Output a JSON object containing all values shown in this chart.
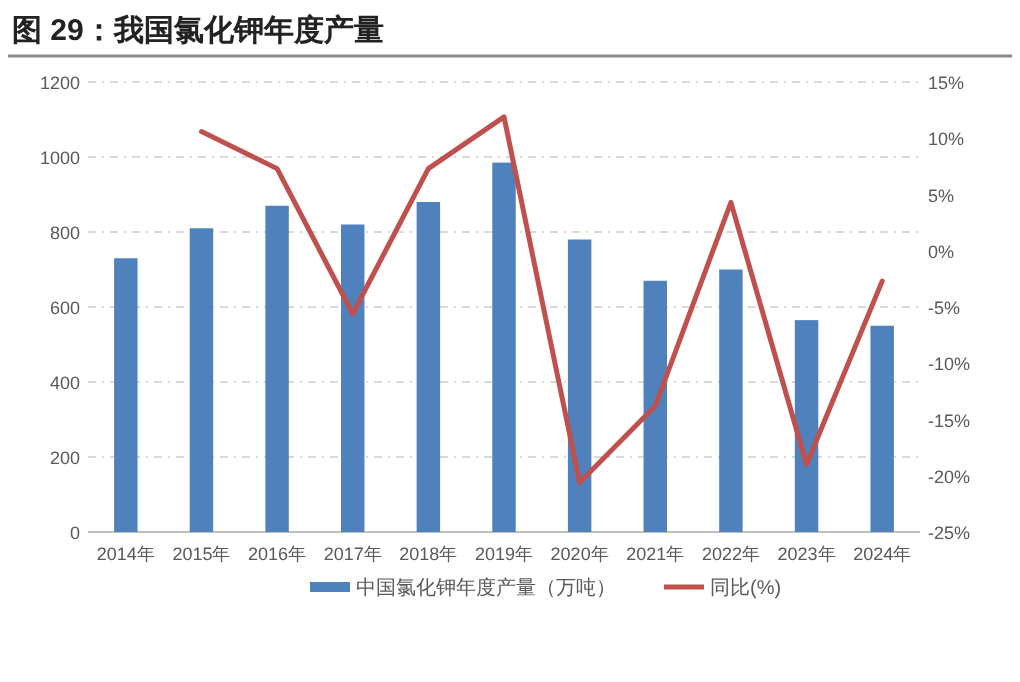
{
  "chart_data": {
    "type": "bar",
    "title": "图 29：我国氯化钾年度产量",
    "categories": [
      "2014年",
      "2015年",
      "2016年",
      "2017年",
      "2018年",
      "2019年",
      "2020年",
      "2021年",
      "2022年",
      "2023年",
      "2024年"
    ],
    "series": [
      {
        "name": "中国氯化钾年度产量（万吨）",
        "color": "#4f81bd",
        "values": [
          730,
          810,
          870,
          820,
          880,
          985,
          780,
          670,
          700,
          565,
          550
        ]
      },
      {
        "name": "同比(%)",
        "type": "line",
        "axis": "y2",
        "color": "#c0504d",
        "values": [
          null,
          10.6,
          7.3,
          -5.6,
          7.3,
          11.9,
          -20.6,
          -13.8,
          4.3,
          -19.0,
          -2.7
        ]
      }
    ],
    "ylim": [
      0,
      1200
    ],
    "yticks": [
      0,
      200,
      400,
      600,
      800,
      1000,
      1200
    ],
    "y2lim": [
      -25,
      15
    ],
    "y2ticks": [
      {
        "value": -25,
        "label": "-25%"
      },
      {
        "value": -20,
        "label": "-20%"
      },
      {
        "value": -15,
        "label": "-15%"
      },
      {
        "value": -10,
        "label": "-10%"
      },
      {
        "value": -5,
        "label": "-5%"
      },
      {
        "value": 0,
        "label": "0%"
      },
      {
        "value": 5,
        "label": "5%"
      },
      {
        "value": 10,
        "label": "10%"
      },
      {
        "value": 15,
        "label": "15%"
      }
    ],
    "grid": "y",
    "legend": "bottom",
    "marker": "none",
    "line_style": "solid"
  }
}
